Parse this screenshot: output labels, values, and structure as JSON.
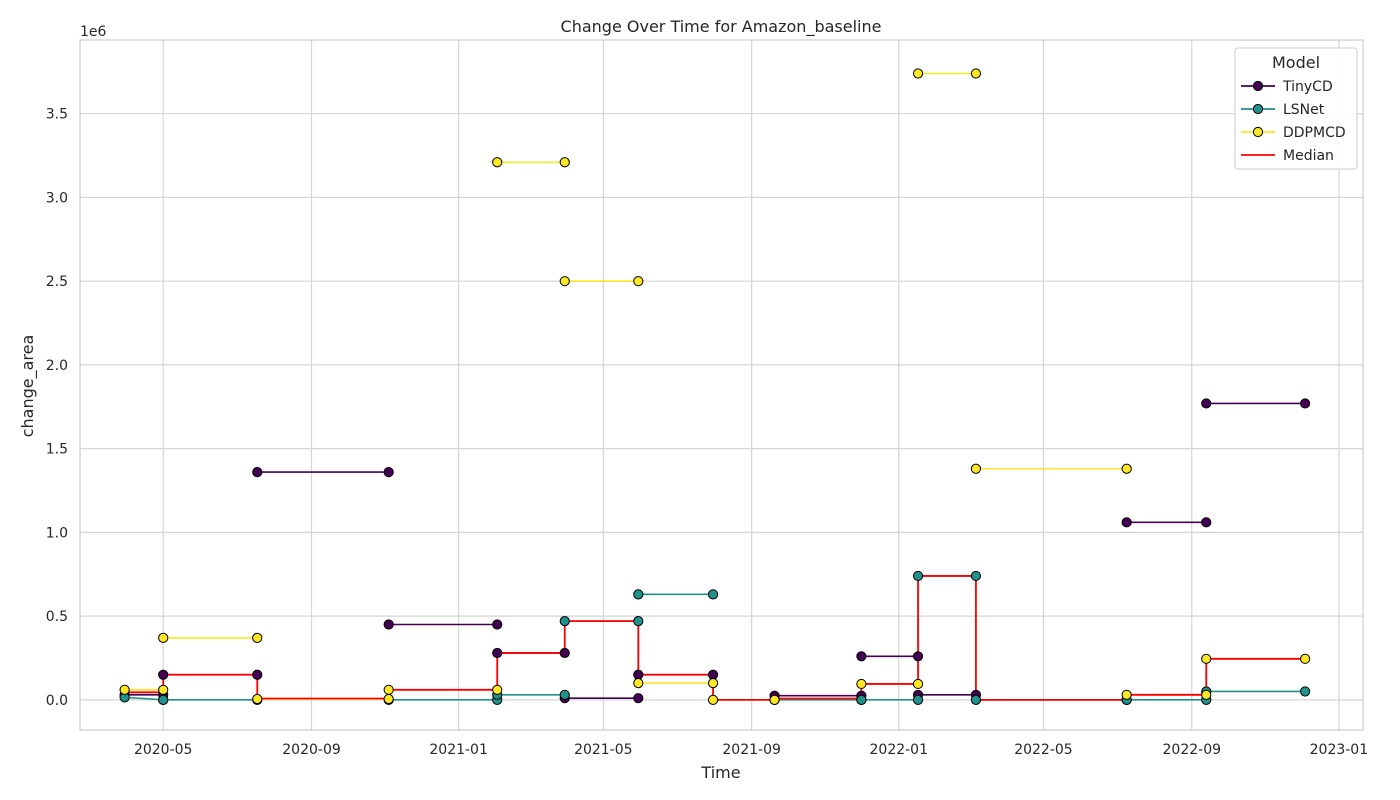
{
  "chart_data": {
    "type": "line",
    "title": "Change Over Time for Amazon_baseline",
    "xlabel": "Time",
    "ylabel": "change_area",
    "y_scale_label": "1e6",
    "x_range": [
      "2020-02-22",
      "2023-01-21"
    ],
    "ylim": [
      -180000,
      3940000
    ],
    "x_ticks": [
      {
        "date": "2020-05-01",
        "label": "2020-05"
      },
      {
        "date": "2020-09-01",
        "label": "2020-09"
      },
      {
        "date": "2021-01-01",
        "label": "2021-01"
      },
      {
        "date": "2021-05-01",
        "label": "2021-05"
      },
      {
        "date": "2021-09-01",
        "label": "2021-09"
      },
      {
        "date": "2022-01-01",
        "label": "2022-01"
      },
      {
        "date": "2022-05-01",
        "label": "2022-05"
      },
      {
        "date": "2022-09-01",
        "label": "2022-09"
      },
      {
        "date": "2023-01-01",
        "label": "2023-01"
      }
    ],
    "y_ticks": [
      {
        "value": 0,
        "label": "0.0"
      },
      {
        "value": 500000,
        "label": "0.5"
      },
      {
        "value": 1000000,
        "label": "1.0"
      },
      {
        "value": 1500000,
        "label": "1.5"
      },
      {
        "value": 2000000,
        "label": "2.0"
      },
      {
        "value": 2500000,
        "label": "2.5"
      },
      {
        "value": 3000000,
        "label": "3.0"
      },
      {
        "value": 3500000,
        "label": "3.5"
      }
    ],
    "grid": true,
    "legend": {
      "title": "Model",
      "position": "top-right"
    },
    "series": [
      {
        "name": "TinyCD",
        "color": "#440154",
        "marker": true,
        "segments": [
          [
            [
              "2020-03-30",
              30000
            ],
            [
              "2020-05-01",
              30000
            ]
          ],
          [
            [
              "2020-05-01",
              150000
            ],
            [
              "2020-07-18",
              150000
            ]
          ],
          [
            [
              "2020-07-18",
              1360000
            ],
            [
              "2020-11-04",
              1360000
            ]
          ],
          [
            [
              "2020-11-04",
              450000
            ],
            [
              "2021-02-02",
              450000
            ]
          ],
          [
            [
              "2021-02-02",
              280000
            ],
            [
              "2021-03-30",
              280000
            ]
          ],
          [
            [
              "2021-03-30",
              10000
            ],
            [
              "2021-05-30",
              10000
            ]
          ],
          [
            [
              "2021-05-30",
              150000
            ],
            [
              "2021-07-31",
              150000
            ]
          ],
          [
            [
              "2021-09-20",
              25000
            ],
            [
              "2021-12-01",
              25000
            ]
          ],
          [
            [
              "2021-12-01",
              260000
            ],
            [
              "2022-01-17",
              260000
            ]
          ],
          [
            [
              "2022-01-17",
              30000
            ],
            [
              "2022-03-06",
              30000
            ]
          ],
          [
            [
              "2022-07-09",
              1060000
            ],
            [
              "2022-09-13",
              1060000
            ]
          ],
          [
            [
              "2022-09-13",
              1770000
            ],
            [
              "2022-12-04",
              1770000
            ]
          ]
        ]
      },
      {
        "name": "LSNet",
        "color": "#21918c",
        "marker": true,
        "segments": [
          [
            [
              "2020-03-30",
              15000
            ],
            [
              "2020-05-01",
              0
            ]
          ],
          [
            [
              "2020-05-01",
              0
            ],
            [
              "2020-07-18",
              0
            ]
          ],
          [
            [
              "2020-11-04",
              0
            ],
            [
              "2021-02-02",
              0
            ]
          ],
          [
            [
              "2021-02-02",
              30000
            ],
            [
              "2021-03-30",
              30000
            ]
          ],
          [
            [
              "2021-03-30",
              470000
            ],
            [
              "2021-05-30",
              470000
            ]
          ],
          [
            [
              "2021-05-30",
              630000
            ],
            [
              "2021-07-31",
              630000
            ]
          ],
          [
            [
              "2021-09-20",
              0
            ],
            [
              "2021-12-01",
              0
            ]
          ],
          [
            [
              "2021-12-01",
              0
            ],
            [
              "2022-01-17",
              0
            ]
          ],
          [
            [
              "2022-01-17",
              740000
            ],
            [
              "2022-03-06",
              740000
            ]
          ],
          [
            [
              "2022-03-06",
              0
            ],
            [
              "2022-07-09",
              0
            ]
          ],
          [
            [
              "2022-07-09",
              0
            ],
            [
              "2022-09-13",
              0
            ]
          ],
          [
            [
              "2022-09-13",
              50000
            ],
            [
              "2022-12-04",
              50000
            ]
          ]
        ]
      },
      {
        "name": "DDPMCD",
        "color": "#fde725",
        "marker": true,
        "segments": [
          [
            [
              "2020-03-30",
              60000
            ],
            [
              "2020-05-01",
              60000
            ]
          ],
          [
            [
              "2020-05-01",
              370000
            ],
            [
              "2020-07-18",
              370000
            ]
          ],
          [
            [
              "2020-07-18",
              5000
            ],
            [
              "2020-11-04",
              5000
            ]
          ],
          [
            [
              "2020-11-04",
              60000
            ],
            [
              "2021-02-02",
              60000
            ]
          ],
          [
            [
              "2021-02-02",
              3210000
            ],
            [
              "2021-03-30",
              3210000
            ]
          ],
          [
            [
              "2021-03-30",
              2500000
            ],
            [
              "2021-05-30",
              2500000
            ]
          ],
          [
            [
              "2021-05-30",
              100000
            ],
            [
              "2021-07-31",
              100000
            ]
          ],
          [
            [
              "2021-07-31",
              0
            ],
            [
              "2021-09-20",
              0
            ]
          ],
          [
            [
              "2021-12-01",
              95000
            ],
            [
              "2022-01-17",
              95000
            ]
          ],
          [
            [
              "2022-01-17",
              3740000
            ],
            [
              "2022-03-06",
              3740000
            ]
          ],
          [
            [
              "2022-03-06",
              1380000
            ],
            [
              "2022-07-09",
              1380000
            ]
          ],
          [
            [
              "2022-07-09",
              30000
            ],
            [
              "2022-09-13",
              30000
            ]
          ],
          [
            [
              "2022-09-13",
              245000
            ],
            [
              "2022-12-04",
              245000
            ]
          ]
        ]
      },
      {
        "name": "Median",
        "color": "#ff0000",
        "marker": false,
        "points": [
          [
            "2020-03-30",
            45000
          ],
          [
            "2020-05-01",
            45000
          ],
          [
            "2020-05-01",
            150000
          ],
          [
            "2020-07-18",
            150000
          ],
          [
            "2020-07-18",
            8000
          ],
          [
            "2020-11-04",
            8000
          ],
          [
            "2020-11-04",
            60000
          ],
          [
            "2021-02-02",
            60000
          ],
          [
            "2021-02-02",
            280000
          ],
          [
            "2021-03-30",
            280000
          ],
          [
            "2021-03-30",
            470000
          ],
          [
            "2021-05-30",
            470000
          ],
          [
            "2021-05-30",
            150000
          ],
          [
            "2021-07-31",
            150000
          ],
          [
            "2021-07-31",
            0
          ],
          [
            "2021-09-20",
            0
          ],
          [
            "2021-09-20",
            8000
          ],
          [
            "2021-12-01",
            8000
          ],
          [
            "2021-12-01",
            95000
          ],
          [
            "2022-01-17",
            95000
          ],
          [
            "2022-01-17",
            740000
          ],
          [
            "2022-03-06",
            740000
          ],
          [
            "2022-03-06",
            0
          ],
          [
            "2022-07-09",
            0
          ],
          [
            "2022-07-09",
            30000
          ],
          [
            "2022-09-13",
            30000
          ],
          [
            "2022-09-13",
            245000
          ],
          [
            "2022-12-04",
            245000
          ]
        ]
      }
    ]
  }
}
